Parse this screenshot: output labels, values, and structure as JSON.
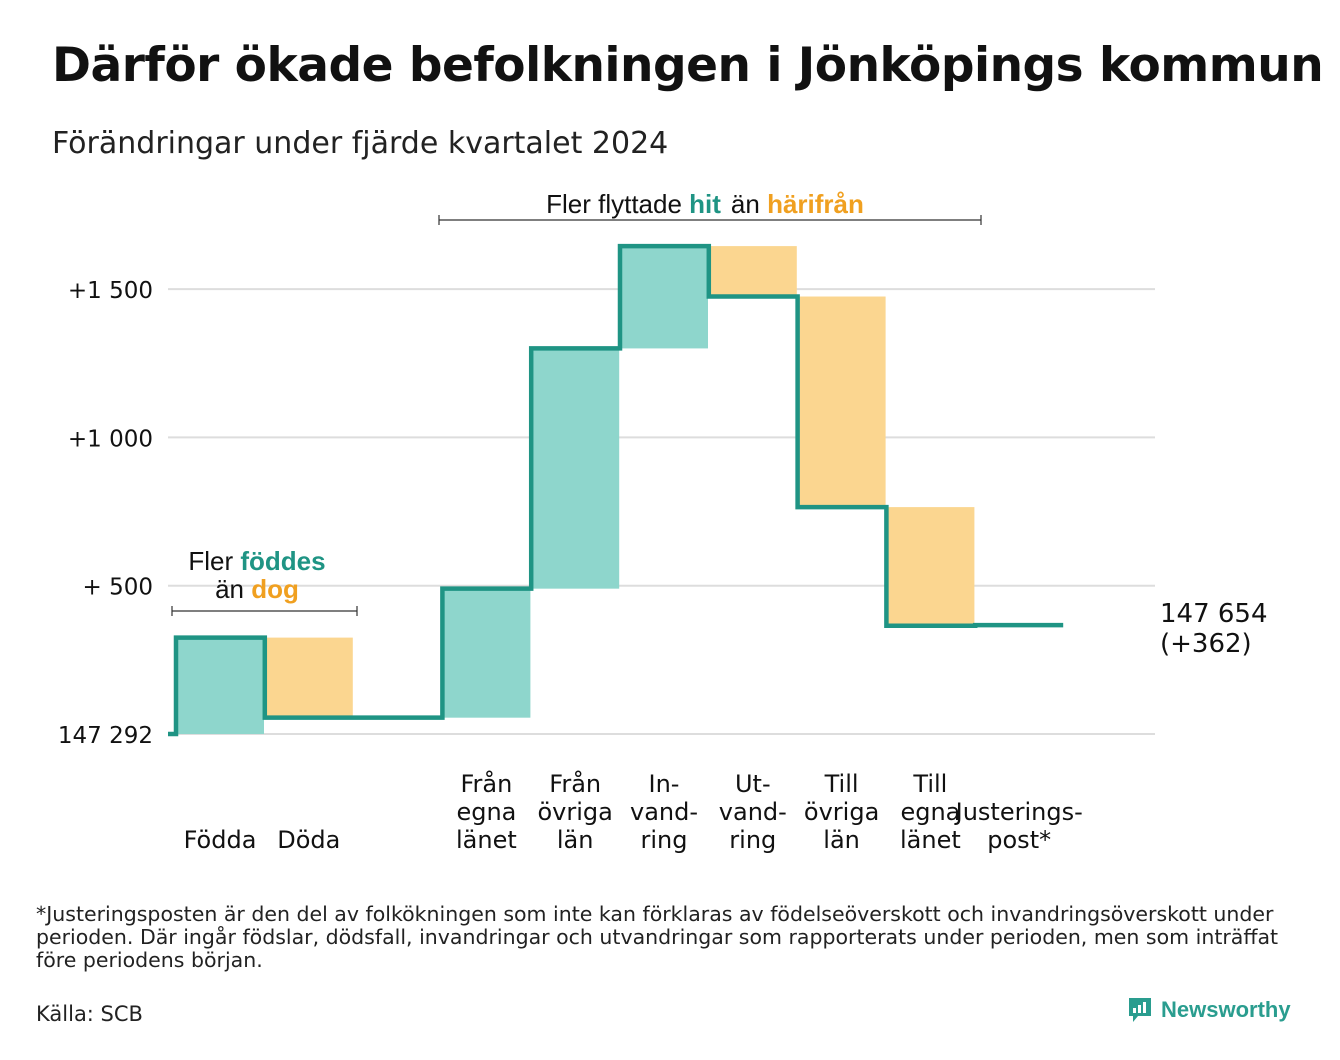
{
  "title": "Därför ökade befolkningen i Jönköpings kommun",
  "subtitle": "Förändringar under fjärde kvartalet 2024",
  "footnote": "*Justeringsposten är den del av folkökningen som inte kan förklaras av födelseöverskott och invandringsöverskott under perioden. Där ingår födslar, dödsfall, invandringar och utvandringar som rapporterats under perioden, men som inträffat före periodens början.",
  "source": "Källa: SCB",
  "brand": "Newsworthy",
  "colors": {
    "increase": "#8ed6cc",
    "decrease": "#fbd690",
    "line": "#1f9484",
    "highlight_teal": "#1f9484",
    "highlight_orange": "#f0a020",
    "grid": "#dddddd"
  },
  "annotations": {
    "births": {
      "line1_pre": "Fler ",
      "line1_hl": "föddes",
      "line2_pre": "än ",
      "line2_hl": "dog"
    },
    "migration": {
      "pre": "Fler flyttade ",
      "hl1": "hit",
      "mid": "än ",
      "hl2": "härifrån"
    }
  },
  "end_label": {
    "value": "147 654",
    "change": "(+362)"
  },
  "chart_data": {
    "type": "waterfall",
    "start_value": 147292,
    "end_value": 147654,
    "net_change": 362,
    "y_axis": {
      "range": [
        0,
        1650
      ],
      "ticks": [
        {
          "value": 0,
          "label": "147 292"
        },
        {
          "value": 500,
          "label": "+  500"
        },
        {
          "value": 1000,
          "label": "+1 000"
        },
        {
          "value": 1500,
          "label": "+1 500"
        }
      ]
    },
    "grid": true,
    "steps": [
      {
        "label": [
          "Födda"
        ],
        "delta": 325
      },
      {
        "label": [
          "Döda"
        ],
        "delta": -270
      },
      {
        "label": [
          ""
        ],
        "delta": 0
      },
      {
        "label": [
          "Från",
          "egna",
          "länet"
        ],
        "delta": 435
      },
      {
        "label": [
          "Från",
          "övriga",
          "län"
        ],
        "delta": 810
      },
      {
        "label": [
          "In-",
          "vand-",
          "ring"
        ],
        "delta": 345
      },
      {
        "label": [
          "Ut-",
          "vand-",
          "ring"
        ],
        "delta": -170
      },
      {
        "label": [
          "Till",
          "övriga",
          "län"
        ],
        "delta": -710
      },
      {
        "label": [
          "Till",
          "egna",
          "länet"
        ],
        "delta": -400
      },
      {
        "label": [
          "Justerings-",
          "post*"
        ],
        "delta": 2
      }
    ]
  }
}
